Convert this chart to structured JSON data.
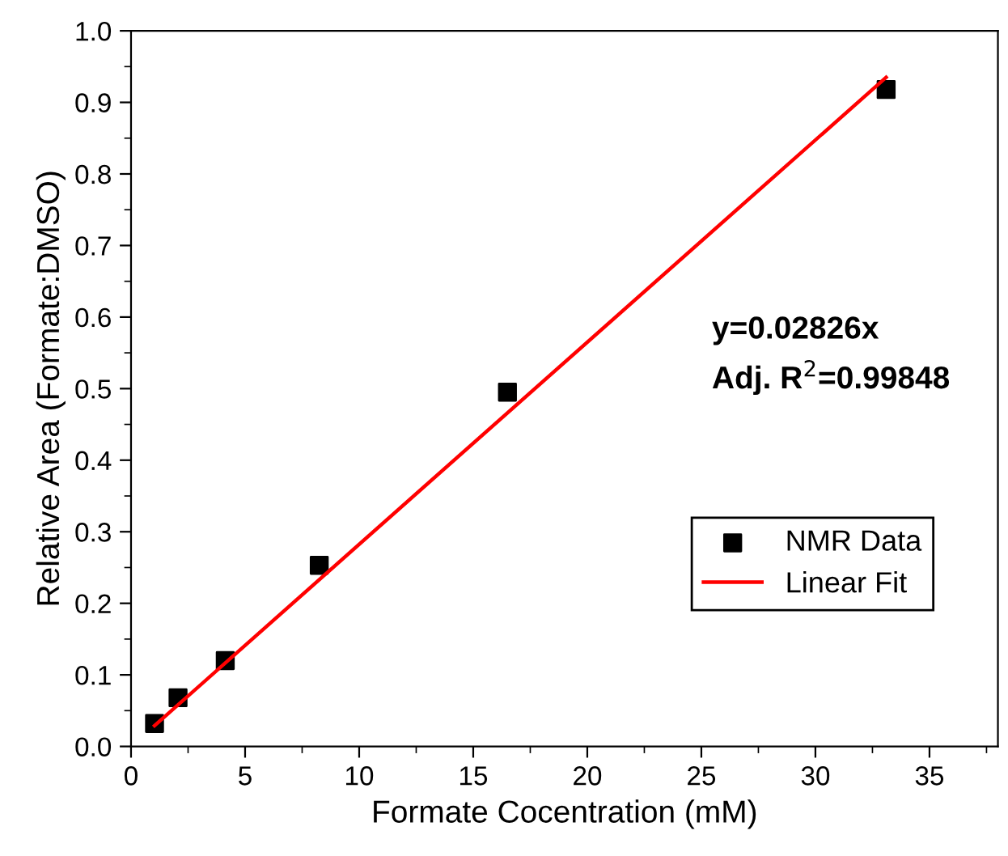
{
  "chart_data": {
    "type": "scatter",
    "xlabel": "Formate Cocentration (mM)",
    "ylabel": "Relative Area (Formate:DMSO)",
    "xlim": [
      0,
      38
    ],
    "xticks": [
      0,
      5,
      10,
      15,
      20,
      25,
      30,
      35
    ],
    "ylim": [
      0,
      1.0
    ],
    "yticks": [
      {
        "value": 0,
        "label": "0.0"
      },
      0.1,
      0.2,
      0.3,
      0.4,
      0.5,
      0.6,
      0.7,
      0.8,
      0.9,
      {
        "value": 1,
        "label": "1.0"
      }
    ],
    "grid": false,
    "legend": "bottom right",
    "series": [
      {
        "name": "NMR Data",
        "marker": "square",
        "color": "#000000",
        "x": [
          1.03,
          2.06,
          4.13,
          8.25,
          16.5,
          33.1
        ],
        "values": [
          0.032,
          0.068,
          0.12,
          0.253,
          0.495,
          0.918
        ]
      },
      {
        "name": "Linear Fit",
        "type": "line",
        "marker": "none",
        "line_style": "solid",
        "color": "#ff0000",
        "x": [
          1.03,
          33.1
        ],
        "values": [
          0.029,
          0.935
        ]
      }
    ],
    "annotations": [
      "y=0.02826x",
      "Adj. R$^{2}$=0.99848"
    ]
  }
}
